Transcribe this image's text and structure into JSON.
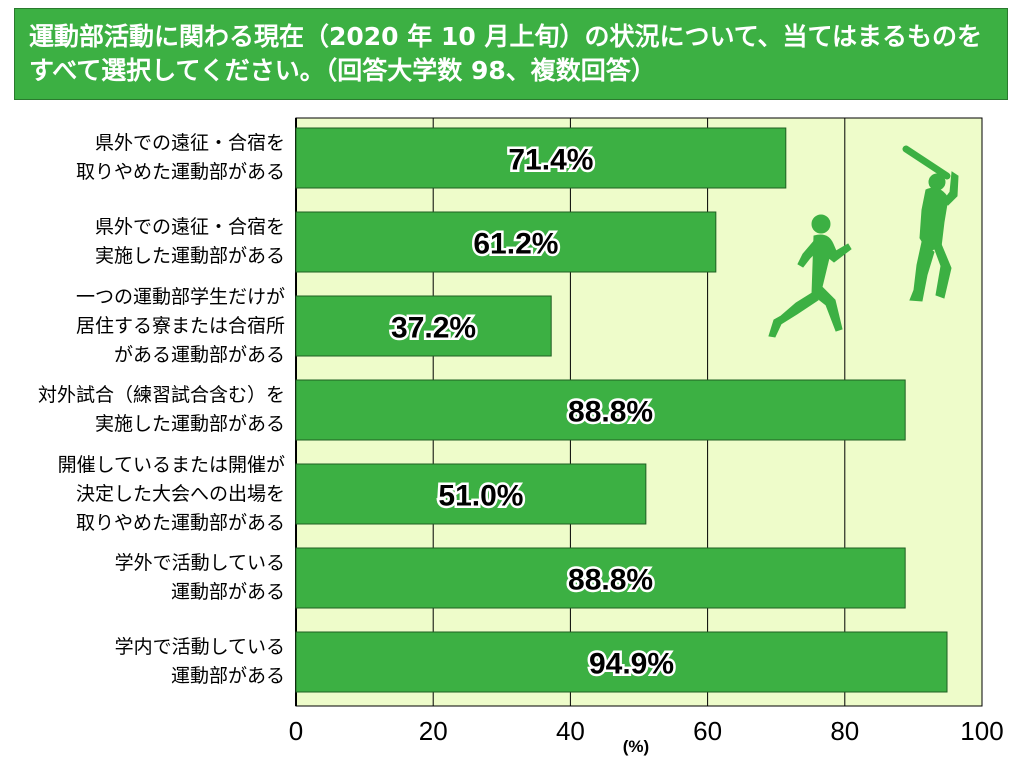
{
  "title": "運動部活動に関わる現在（2020 年 10 月上旬）の状況について、当てはまるものをすべて選択してください。（回答大学数 98、複数回答）",
  "colors": {
    "bar": "#3cb043",
    "plot_bg": "#eefcca",
    "title_bg": "#3cb043",
    "silhouette": "#3cb043"
  },
  "chart_data": {
    "type": "bar",
    "orientation": "horizontal",
    "title": "運動部活動に関わる現在（2020 年 10 月上旬）の状況について、当てはまるものをすべて選択してください。（回答大学数 98、複数回答）",
    "categories": [
      "県外での遠征・合宿を\n取りやめた運動部がある",
      "県外での遠征・合宿を\n実施した運動部がある",
      "一つの運動部学生だけが\n居住する寮または合宿所\nがある運動部がある",
      "対外試合（練習試合含む）を\n実施した運動部がある",
      "開催しているまたは開催が\n決定した大会への出場を\n取りやめた運動部がある",
      "学外で活動している\n運動部がある",
      "学内で活動している\n運動部がある"
    ],
    "values": [
      71.4,
      61.2,
      37.2,
      88.8,
      51.0,
      88.8,
      94.9
    ],
    "value_labels": [
      "71.4%",
      "61.2%",
      "37.2%",
      "88.8%",
      "51.0%",
      "88.8%",
      "94.9%"
    ],
    "xlim": [
      0,
      100
    ],
    "xticks": [
      0,
      20,
      40,
      60,
      80,
      100
    ],
    "xtick_labels": [
      "0",
      "20",
      "40",
      "60",
      "80",
      "100"
    ],
    "xlabel": "(%)",
    "grid": true,
    "decorations": [
      "runner-silhouette",
      "batter-silhouette"
    ]
  }
}
